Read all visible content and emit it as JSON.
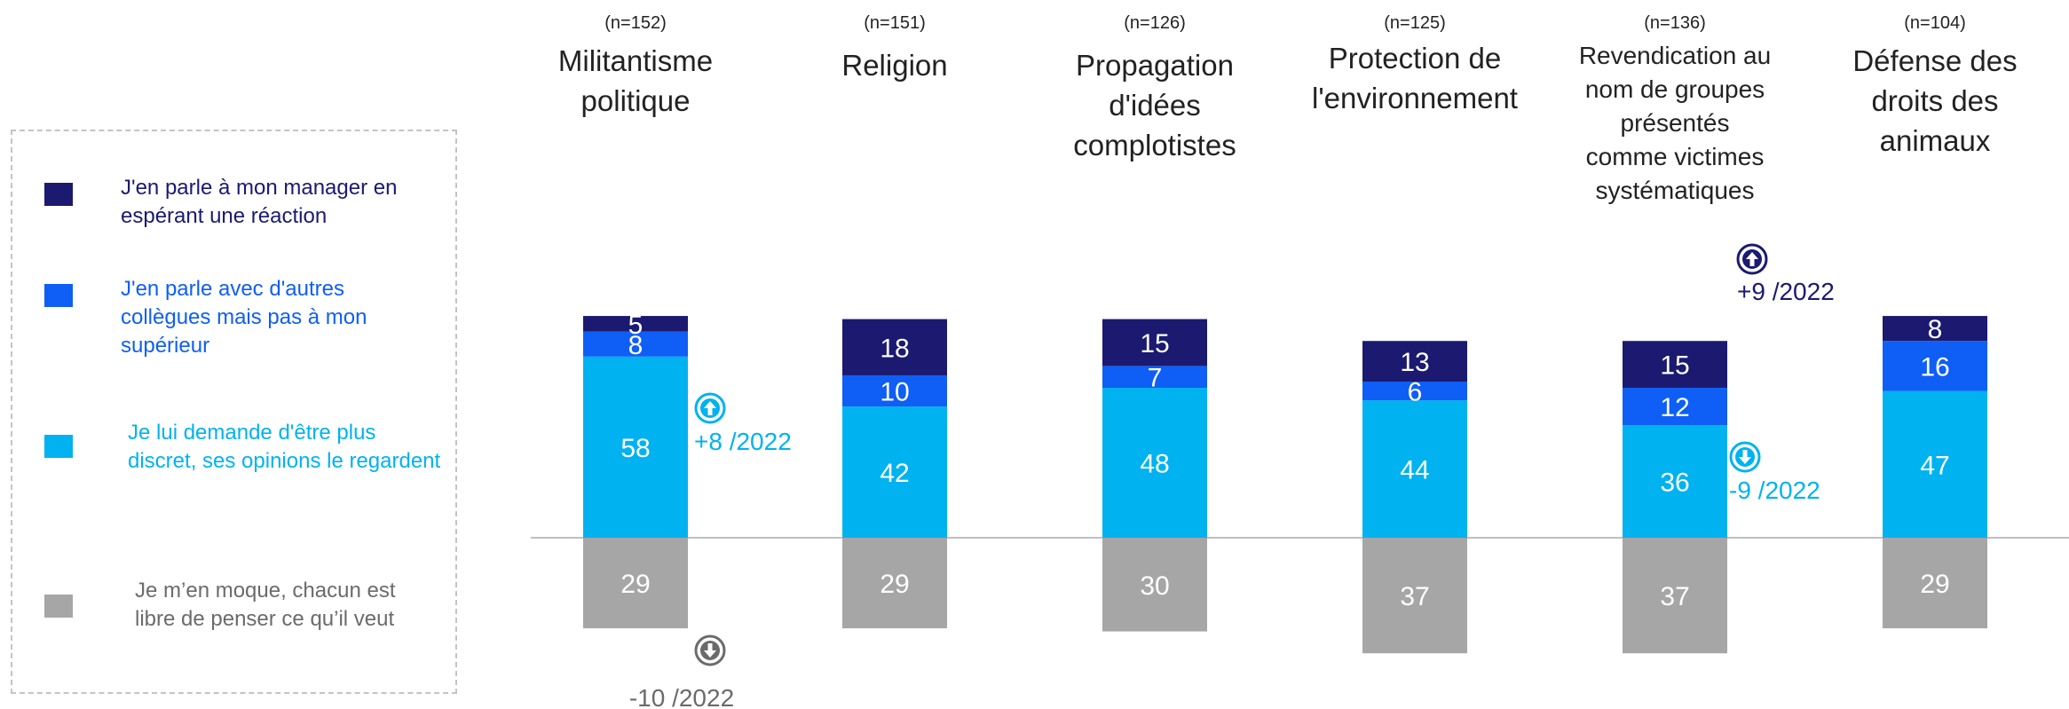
{
  "colors": {
    "manager": "#1b1a70",
    "colleagues": "#0f5ef5",
    "discreet": "#00b2f0",
    "dontcare": "#a6a6a6",
    "negative_label": "#6b6b6b"
  },
  "legend": {
    "items": [
      {
        "key": "manager",
        "label": "J'en parle à mon manager en espérant une réaction",
        "color_key": "manager"
      },
      {
        "key": "colleagues",
        "label": "J'en parle avec d'autres collègues mais pas à mon supérieur",
        "color_key": "colleagues"
      },
      {
        "key": "discreet",
        "label": "Je lui demande d'être plus discret, ses opinions le regardent",
        "color_key": "discreet"
      },
      {
        "key": "dontcare",
        "label": "Je m’en moque, chacun est libre de penser ce qu’il veut",
        "color_key": "dontcare"
      }
    ]
  },
  "chart_data": {
    "type": "bar",
    "stacked": true,
    "diverging": true,
    "categories": [
      "Militantisme politique",
      "Religion",
      "Propagation d'idées complotistes",
      "Protection de l'environnement",
      "Revendication au nom de groupes présentés comme victimes systématiques",
      "Défense des droits des animaux"
    ],
    "category_lines": [
      [
        "Militantisme",
        "politique"
      ],
      [
        "Religion"
      ],
      [
        "Propagation",
        "d'idées",
        "complotistes"
      ],
      [
        "Protection de",
        "l'environnement"
      ],
      [
        "Revendication au",
        "nom de groupes",
        "présentés",
        "comme victimes",
        "systématiques"
      ],
      [
        "Défense des",
        "droits des",
        "animaux"
      ]
    ],
    "sample_sizes": [
      "(n=152)",
      "(n=151)",
      "(n=126)",
      "(n=125)",
      "(n=136)",
      "(n=104)"
    ],
    "series": [
      {
        "name": "J'en parle à mon manager en espérant une réaction",
        "key": "manager",
        "values": [
          5,
          18,
          15,
          13,
          15,
          8
        ]
      },
      {
        "name": "J'en parle avec d'autres collègues mais pas à mon supérieur",
        "key": "colleagues",
        "values": [
          8,
          10,
          7,
          6,
          12,
          16
        ]
      },
      {
        "name": "Je lui demande d'être plus discret, ses opinions le regardent",
        "key": "discreet",
        "values": [
          58,
          42,
          48,
          44,
          36,
          47
        ]
      },
      {
        "name": "Je m’en moque, chacun est libre de penser ce qu’il veut",
        "key": "dontcare",
        "values": [
          -29,
          -29,
          -30,
          -37,
          -37,
          -29
        ]
      }
    ],
    "annotations": [
      {
        "category_index": 0,
        "series_key": "discreet",
        "direction": "up",
        "text": "+8 /2022"
      },
      {
        "category_index": 0,
        "series_key": "dontcare",
        "direction": "down",
        "text": "-10 /2022"
      },
      {
        "category_index": 4,
        "series_key": "manager",
        "direction": "up",
        "text": "+9 /2022"
      },
      {
        "category_index": 4,
        "series_key": "discreet",
        "direction": "down",
        "text": "-9 /2022"
      }
    ],
    "grid": false,
    "legend_position": "left"
  }
}
